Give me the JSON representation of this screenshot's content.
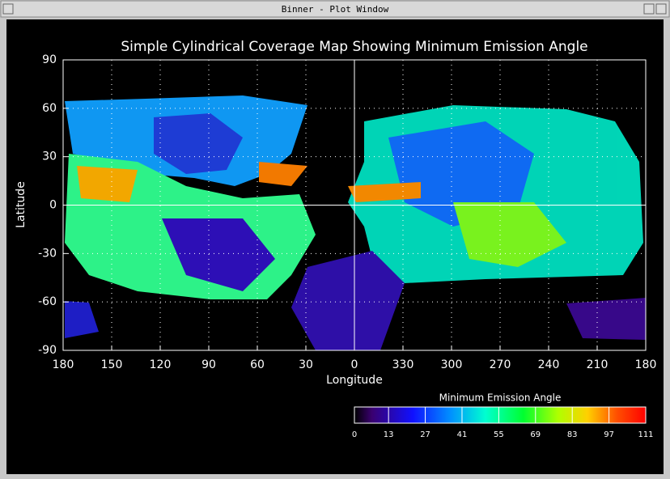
{
  "window": {
    "title": "Binner - Plot Window"
  },
  "chart_data": {
    "type": "heatmap",
    "title": "Simple Cylindrical Coverage Map Showing Minimum Emission Angle",
    "xlabel": "Longitude",
    "ylabel": "Latitude",
    "xlim": [
      180,
      -180
    ],
    "xticks": [
      180,
      150,
      120,
      90,
      60,
      30,
      0,
      {
        "value": -30,
        "label": "330"
      },
      {
        "value": -60,
        "label": "300"
      },
      {
        "value": -90,
        "label": "270"
      },
      {
        "value": -120,
        "label": "240"
      },
      {
        "value": -150,
        "label": "210"
      },
      {
        "value": -180,
        "label": "180"
      }
    ],
    "ylim": [
      -90,
      90
    ],
    "yticks": [
      -90,
      -60,
      -30,
      0,
      30,
      60,
      90
    ],
    "grid": true,
    "colorbar": {
      "title": "Minimum Emission Angle",
      "lim": [
        0,
        111
      ],
      "ticks": [
        0,
        13,
        27,
        41,
        55,
        69,
        83,
        97,
        111
      ]
    }
  }
}
